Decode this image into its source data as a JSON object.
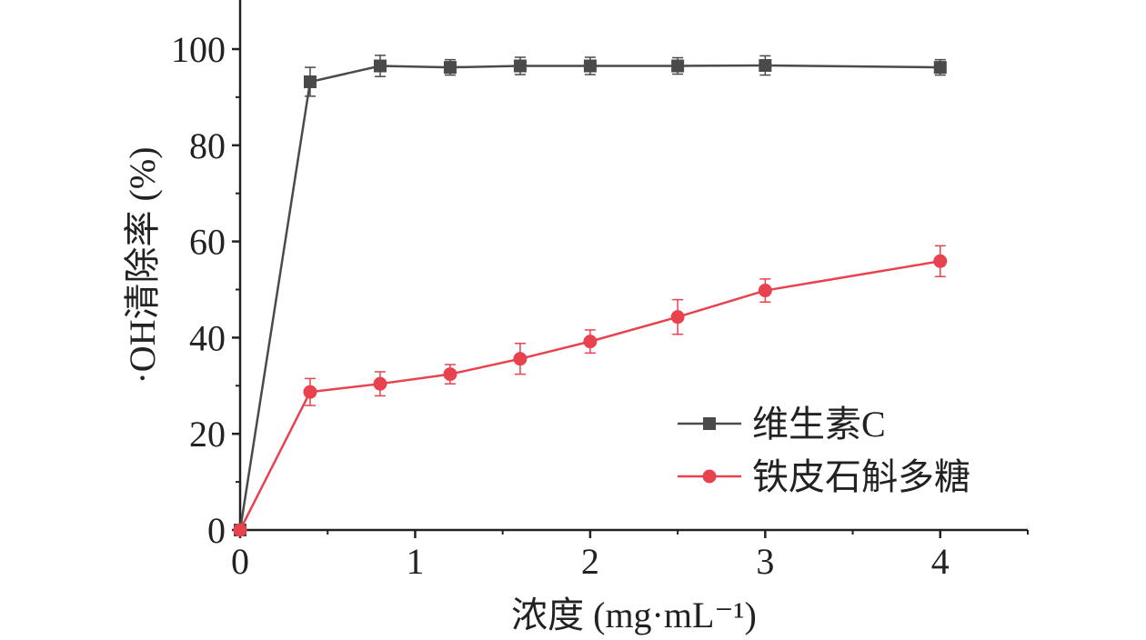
{
  "chart_data": {
    "type": "line",
    "xlabel": "浓度 (mg·mL⁻¹)",
    "ylabel": "·OH清除率 (%)",
    "xlim": [
      0,
      4.5
    ],
    "ylim": [
      0,
      100
    ],
    "xticks": [
      0,
      1,
      2,
      3,
      4
    ],
    "yticks": [
      0,
      20,
      40,
      60,
      80,
      100
    ],
    "grid": false,
    "legend_position": "bottom-right",
    "series": [
      {
        "name": "维生素C",
        "color": "#4a4a4a",
        "marker": "square",
        "x": [
          0,
          0.4,
          0.8,
          1.2,
          1.6,
          2.0,
          2.5,
          3.0,
          4.0
        ],
        "y": [
          0,
          93.2,
          96.5,
          96.2,
          96.5,
          96.5,
          96.5,
          96.6,
          96.2
        ],
        "err": [
          0,
          3.0,
          2.2,
          1.6,
          1.8,
          1.8,
          1.7,
          2.0,
          1.6
        ]
      },
      {
        "name": "铁皮石斛多糖",
        "color": "#e8424f",
        "marker": "circle",
        "x": [
          0,
          0.4,
          0.8,
          1.2,
          1.6,
          2.0,
          2.5,
          3.0,
          4.0
        ],
        "y": [
          0,
          28.7,
          30.4,
          32.4,
          35.6,
          39.2,
          44.3,
          49.8,
          55.9
        ],
        "err": [
          0,
          2.8,
          2.5,
          2.0,
          3.2,
          2.4,
          3.6,
          2.4,
          3.2
        ]
      }
    ]
  }
}
